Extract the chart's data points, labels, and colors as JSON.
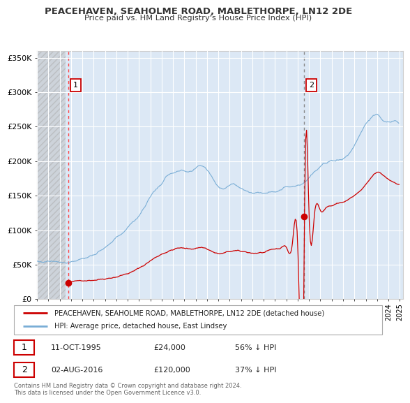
{
  "title_line1": "PEACEHAVEN, SEAHOLME ROAD, MABLETHORPE, LN12 2DE",
  "title_line2": "Price paid vs. HM Land Registry's House Price Index (HPI)",
  "background_color": "#ffffff",
  "plot_bg_color": "#dce8f5",
  "hatch_bg_color": "#c8c8c8",
  "grid_color": "#ffffff",
  "yticks": [
    0,
    50000,
    100000,
    150000,
    200000,
    250000,
    300000,
    350000
  ],
  "ytick_labels": [
    "£0",
    "£50K",
    "£100K",
    "£150K",
    "£200K",
    "£250K",
    "£300K",
    "£350K"
  ],
  "legend_property_label": "PEACEHAVEN, SEAHOLME ROAD, MABLETHORPE, LN12 2DE (detached house)",
  "legend_hpi_label": "HPI: Average price, detached house, East Lindsey",
  "annotation1_date": "11-OCT-1995",
  "annotation1_price": "£24,000",
  "annotation1_hpi": "56% ↓ HPI",
  "annotation2_date": "02-AUG-2016",
  "annotation2_price": "£120,000",
  "annotation2_hpi": "37% ↓ HPI",
  "footer_text": "Contains HM Land Registry data © Crown copyright and database right 2024.\nThis data is licensed under the Open Government Licence v3.0.",
  "sale_marker_color": "#cc0000",
  "property_line_color": "#cc0000",
  "hpi_line_color": "#7aaed6",
  "vline1_color": "#ff4444",
  "vline2_color": "#888888",
  "marker_box_color": "#cc0000",
  "sale1_x": 1995.78,
  "sale1_y": 24000,
  "sale2_x": 2016.58,
  "sale2_y": 120000,
  "xlim_left": 1993.0,
  "xlim_right": 2025.3,
  "ylim_top": 360000
}
